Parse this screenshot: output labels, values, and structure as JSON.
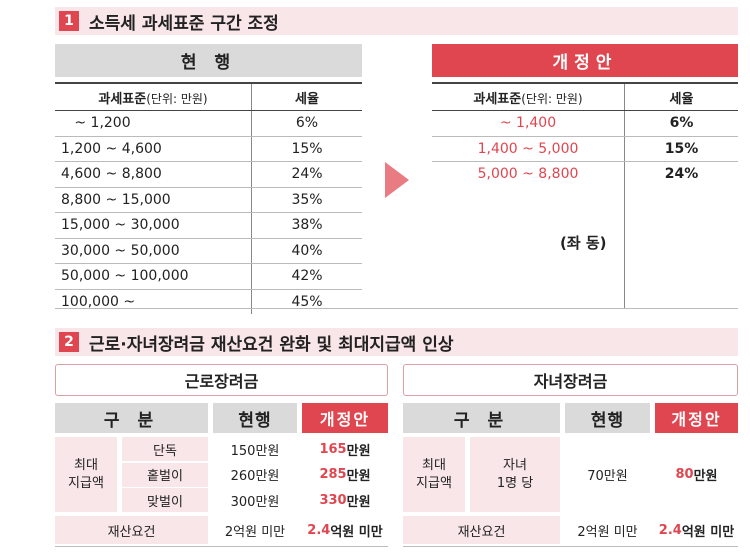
{
  "section1": {
    "number": "1",
    "title": "소득세 과세표준 구간 조정",
    "current": {
      "header": "현 행",
      "col1_label": "과세표준",
      "col1_unit": "(단위: 만원)",
      "col2_label": "세율",
      "rows": [
        {
          "range": "   ~ 1,200",
          "rate": "6%"
        },
        {
          "range": "1,200 ~ 4,600",
          "rate": "15%"
        },
        {
          "range": "4,600 ~ 8,800",
          "rate": "24%"
        },
        {
          "range": "8,800 ~ 15,000",
          "rate": "35%"
        },
        {
          "range": "15,000 ~ 30,000",
          "rate": "38%"
        },
        {
          "range": "30,000 ~ 50,000",
          "rate": "40%"
        },
        {
          "range": "50,000 ~ 100,000",
          "rate": "42%"
        },
        {
          "range": "100,000 ~",
          "rate": "45%"
        }
      ]
    },
    "proposal": {
      "header": "개정안",
      "col1_label": "과세표준",
      "col1_unit": "(단위: 만원)",
      "col2_label": "세율",
      "rows": [
        {
          "range": "~ 1,400",
          "rate": "6%"
        },
        {
          "range": "1,400 ~ 5,000",
          "rate": "15%"
        },
        {
          "range": "5,000 ~ 8,800",
          "rate": "24%"
        }
      ],
      "note": "(좌 동)"
    },
    "arrow_color": "#e97b82"
  },
  "section2": {
    "number": "2",
    "title": "근로·자녀장려금 재산요건 완화 및 최대지급액 인상",
    "left": {
      "title": "근로장려금",
      "h_category": "구 분",
      "h_current": "현행",
      "h_proposal": "개정안",
      "max_label_1": "최대",
      "max_label_2": "지급액",
      "rows": [
        {
          "type": "단독",
          "current": "150만원",
          "new_num": "165",
          "new_unit": "만원"
        },
        {
          "type": "홑벌이",
          "current": "260만원",
          "new_num": "285",
          "new_unit": "만원"
        },
        {
          "type": "맞벌이",
          "current": "300만원",
          "new_num": "330",
          "new_unit": "만원"
        }
      ],
      "property_label": "재산요건",
      "property_current": "2억원 미만",
      "property_new_num": "2.4",
      "property_new_unit": "억원 미만"
    },
    "right": {
      "title": "자녀장려금",
      "h_category": "구 분",
      "h_current": "현행",
      "h_proposal": "개정안",
      "max_label_1": "최대",
      "max_label_2": "지급액",
      "child_label_1": "자녀",
      "child_label_2": "1명 당",
      "current": "70만원",
      "new_num": "80",
      "new_unit": "만원",
      "property_label": "재산요건",
      "property_current": "2억원 미만",
      "property_new_num": "2.4",
      "property_new_unit": "억원 미만"
    }
  },
  "colors": {
    "accent": "#e0464f",
    "pink": "#f9e6e8",
    "gray": "#dadada"
  }
}
